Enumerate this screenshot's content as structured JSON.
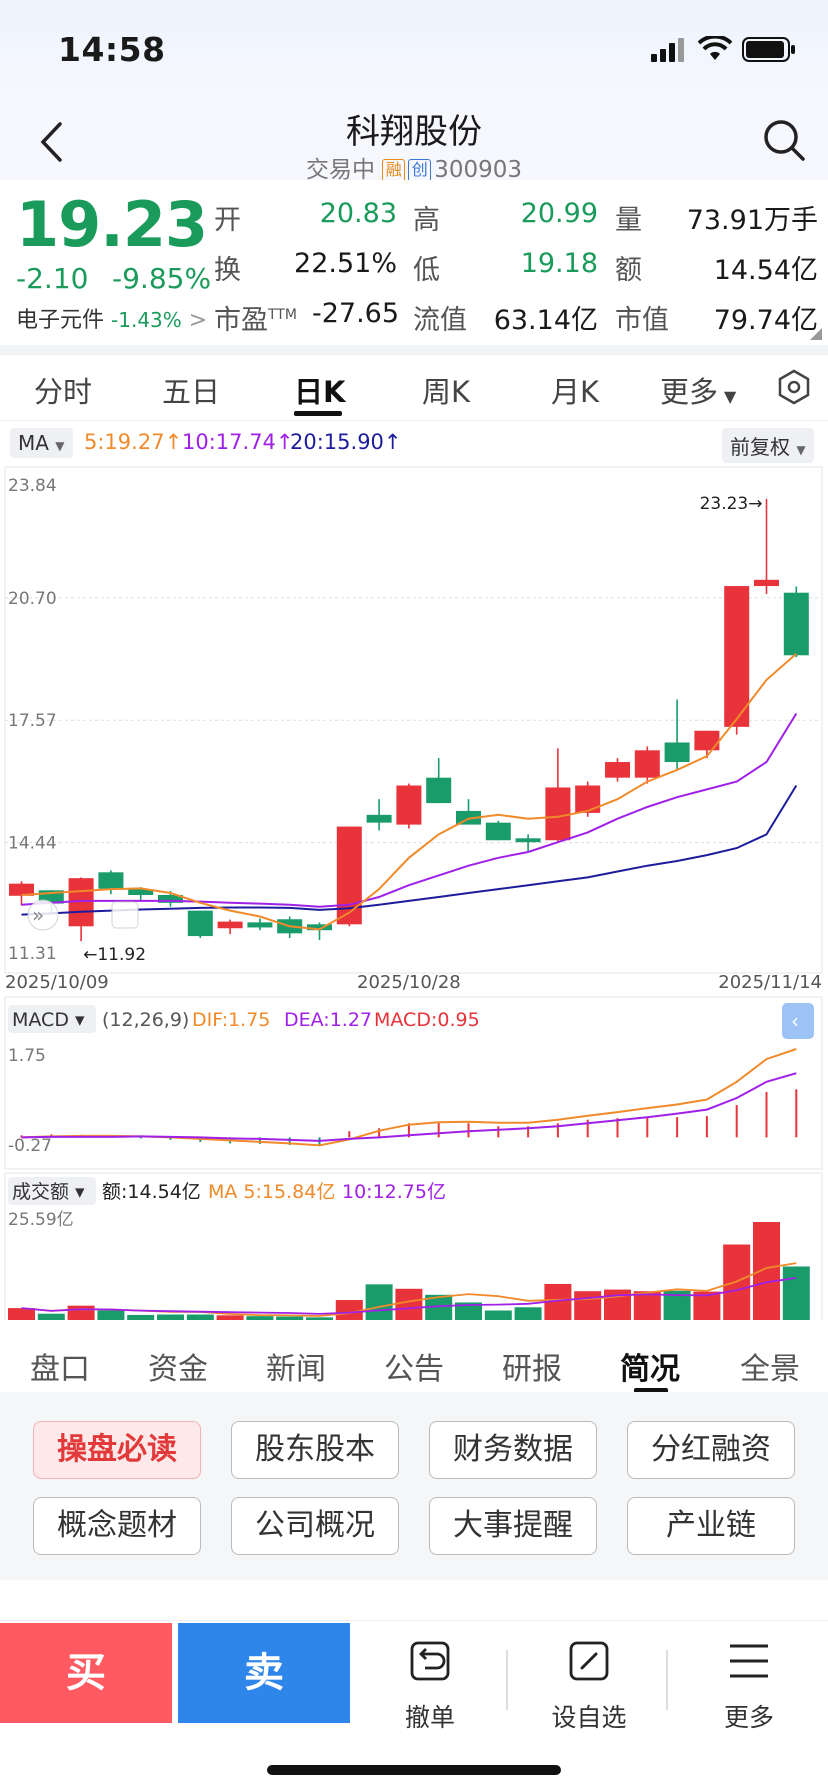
{
  "status_bar": {
    "time": "14:58"
  },
  "header": {
    "title": "科翔股份",
    "trade_status": "交易中",
    "tag_margin": "融",
    "tag_board": "创",
    "code": "300903"
  },
  "quote": {
    "price": "19.23",
    "change": "-2.10",
    "change_pct": "-9.85%",
    "sector_name": "电子元件",
    "sector_pct": "-1.43%",
    "sector_arrow": ">",
    "fields": [
      {
        "label": "开",
        "value": "20.83",
        "color": "green"
      },
      {
        "label": "高",
        "value": "20.99",
        "color": "green"
      },
      {
        "label": "量",
        "value": "73.91万手",
        "color": "black"
      },
      {
        "label": "换",
        "value": "22.51%",
        "color": "black"
      },
      {
        "label": "低",
        "value": "19.18",
        "color": "green"
      },
      {
        "label": "额",
        "value": "14.54亿",
        "color": "black"
      },
      {
        "label": "市盈",
        "label_sup": "TTM",
        "value": "-27.65",
        "color": "black"
      },
      {
        "label": "流值",
        "value": "63.14亿",
        "color": "black"
      },
      {
        "label": "市值",
        "value": "79.74亿",
        "color": "black"
      }
    ]
  },
  "chart_tabs": [
    "分时",
    "五日",
    "日K",
    "周K",
    "月K",
    "更多"
  ],
  "chart_tabs_active": "日K",
  "ma_bar": {
    "indicator": "MA",
    "ma5": "5:19.27",
    "ma10": "10:17.74",
    "ma20": "20:15.90",
    "adjust": "前复权"
  },
  "macd_bar": {
    "indicator": "MACD",
    "params": "(12,26,9)",
    "dif": "DIF:1.75",
    "dea": "DEA:1.27",
    "macd": "MACD:0.95"
  },
  "vol_bar": {
    "indicator": "成交额",
    "amount": "额:14.54亿",
    "ma5": "MA 5:15.84亿",
    "ma10": "10:12.75亿"
  },
  "colors": {
    "up": "#e8333a",
    "down": "#1a9b6a",
    "ma5": "#f08a2a",
    "ma10": "#a020e8",
    "ma20": "#1c1c9c",
    "green": "#1a9b5c",
    "red": "#e23a3a"
  },
  "chart_data": {
    "type": "candlestick",
    "dates": [
      "2025/10/09",
      "2025/10/10",
      "2025/10/13",
      "2025/10/14",
      "2025/10/15",
      "2025/10/16",
      "2025/10/17",
      "2025/10/20",
      "2025/10/21",
      "2025/10/22",
      "2025/10/23",
      "2025/10/24",
      "2025/10/27",
      "2025/10/28",
      "2025/10/29",
      "2025/10/30",
      "2025/10/31",
      "2025/11/03",
      "2025/11/04",
      "2025/11/05",
      "2025/11/06",
      "2025/11/07",
      "2025/11/10",
      "2025/11/11",
      "2025/11/12",
      "2025/11/13",
      "2025/11/14"
    ],
    "x_tick_labels": [
      "2025/10/09",
      "2025/10/28",
      "2025/11/14"
    ],
    "y_tick_labels": [
      "23.84",
      "20.70",
      "17.57",
      "14.44",
      "11.31"
    ],
    "ylim": [
      11.31,
      23.84
    ],
    "high_label": "23.23",
    "low_label": "11.92",
    "ohlc": [
      [
        13.08,
        13.45,
        12.83,
        13.39
      ],
      [
        13.22,
        13.22,
        12.65,
        12.88
      ],
      [
        12.3,
        13.55,
        11.92,
        13.53
      ],
      [
        13.68,
        13.73,
        13.12,
        13.26
      ],
      [
        13.25,
        13.3,
        12.95,
        13.1
      ],
      [
        13.1,
        13.2,
        12.8,
        12.9
      ],
      [
        12.7,
        12.7,
        12.0,
        12.05
      ],
      [
        12.25,
        12.47,
        12.1,
        12.42
      ],
      [
        12.4,
        12.5,
        12.2,
        12.27
      ],
      [
        12.48,
        12.55,
        12.0,
        12.12
      ],
      [
        12.35,
        12.4,
        11.95,
        12.2
      ],
      [
        12.35,
        14.85,
        12.3,
        14.85
      ],
      [
        15.15,
        15.55,
        14.75,
        14.95
      ],
      [
        14.9,
        15.95,
        14.8,
        15.9
      ],
      [
        16.1,
        16.6,
        15.45,
        15.45
      ],
      [
        15.25,
        15.55,
        14.95,
        14.9
      ],
      [
        14.95,
        15.0,
        14.5,
        14.5
      ],
      [
        14.55,
        14.65,
        14.2,
        14.45
      ],
      [
        14.5,
        16.85,
        14.45,
        15.85
      ],
      [
        15.2,
        16.0,
        15.1,
        15.9
      ],
      [
        16.1,
        16.6,
        16.0,
        16.5
      ],
      [
        16.1,
        16.9,
        15.95,
        16.8
      ],
      [
        17.0,
        18.1,
        16.3,
        16.5
      ],
      [
        16.8,
        17.3,
        16.6,
        17.3
      ],
      [
        17.4,
        21.0,
        17.2,
        21.0
      ],
      [
        21.0,
        23.23,
        20.8,
        21.16
      ],
      [
        20.83,
        20.99,
        19.18,
        19.23
      ]
    ],
    "ma5": [
      13.1,
      13.15,
      13.2,
      13.25,
      13.27,
      13.15,
      12.9,
      12.7,
      12.55,
      12.3,
      12.22,
      12.65,
      13.25,
      14.05,
      14.65,
      15.05,
      15.15,
      15.05,
      15.1,
      15.25,
      15.55,
      16.0,
      16.3,
      16.65,
      17.6,
      18.6,
      19.27
    ],
    "ma10": [
      12.85,
      12.9,
      12.95,
      12.95,
      12.95,
      12.95,
      12.93,
      12.9,
      12.88,
      12.85,
      12.8,
      12.85,
      13.05,
      13.35,
      13.6,
      13.85,
      14.05,
      14.2,
      14.45,
      14.7,
      15.05,
      15.35,
      15.6,
      15.8,
      16.0,
      16.5,
      17.74
    ],
    "ma20": [
      12.6,
      12.63,
      12.67,
      12.7,
      12.73,
      12.75,
      12.77,
      12.78,
      12.78,
      12.77,
      12.72,
      12.76,
      12.85,
      12.95,
      13.05,
      13.15,
      13.25,
      13.35,
      13.45,
      13.55,
      13.7,
      13.85,
      13.97,
      14.12,
      14.3,
      14.65,
      15.9
    ],
    "macd": {
      "ylim": [
        -0.27,
        1.75
      ],
      "dif": [
        0.0,
        0.02,
        0.03,
        0.03,
        0.02,
        0.0,
        -0.03,
        -0.06,
        -0.09,
        -0.12,
        -0.16,
        -0.04,
        0.13,
        0.25,
        0.3,
        0.31,
        0.29,
        0.29,
        0.35,
        0.43,
        0.5,
        0.58,
        0.65,
        0.75,
        1.1,
        1.55,
        1.75
      ],
      "dea": [
        0.0,
        0.01,
        0.01,
        0.01,
        0.02,
        0.01,
        0.0,
        -0.02,
        -0.03,
        -0.05,
        -0.07,
        -0.03,
        0.0,
        0.04,
        0.08,
        0.12,
        0.15,
        0.18,
        0.22,
        0.28,
        0.34,
        0.4,
        0.47,
        0.55,
        0.78,
        1.1,
        1.27
      ],
      "hist": [
        0.04,
        0.06,
        0.05,
        0.04,
        -0.02,
        -0.05,
        -0.09,
        -0.12,
        -0.13,
        -0.15,
        -0.15,
        0.12,
        0.18,
        0.28,
        0.3,
        0.28,
        0.22,
        0.22,
        0.28,
        0.35,
        0.38,
        0.4,
        0.4,
        0.42,
        0.64,
        0.9,
        0.95
      ]
    },
    "amount": {
      "unit": "亿",
      "top_label": "25.59亿",
      "values": [
        4.2,
        2.8,
        4.8,
        3.6,
        2.5,
        2.6,
        2.6,
        2.4,
        2.2,
        2.1,
        1.9,
        6.2,
        10.1,
        9.0,
        7.5,
        5.6,
        3.6,
        4.4,
        10.2,
        8.4,
        8.8,
        8.4,
        8.5,
        8.3,
        20.0,
        25.59,
        14.54
      ]
    }
  },
  "detail_tabs": [
    "盘口",
    "资金",
    "新闻",
    "公告",
    "研报",
    "简况",
    "全景"
  ],
  "detail_tabs_active": "简况",
  "quick_buttons": [
    "操盘必读",
    "股东股本",
    "财务数据",
    "分红融资",
    "概念题材",
    "公司概况",
    "大事提醒",
    "产业链"
  ],
  "bottom_bar": {
    "buy": "买",
    "sell": "卖",
    "cancel": "撤单",
    "watchlist": "设自选",
    "more": "更多"
  }
}
